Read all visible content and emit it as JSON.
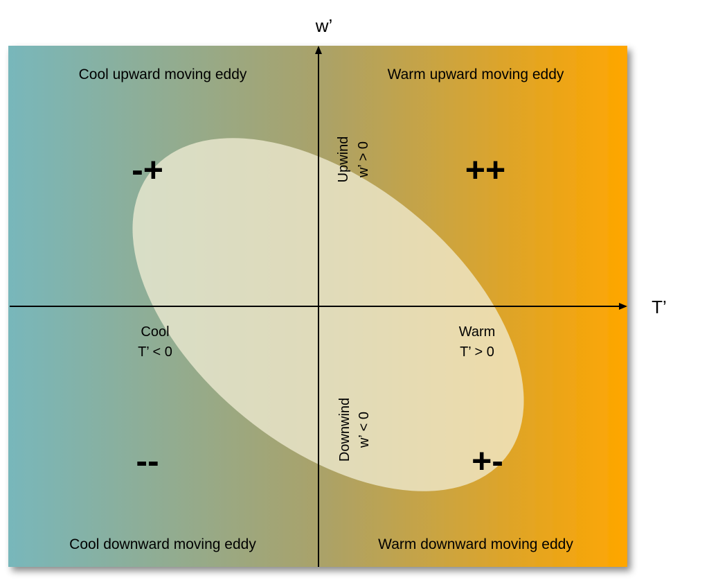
{
  "colors": {
    "cool": "#78b7bb",
    "mid": "#a9a26a",
    "warm": "#ffa600",
    "ellipse": "#f2eed6",
    "axis": "#000000"
  },
  "axes": {
    "x_label": "T’",
    "y_label": "w’"
  },
  "quadrants": {
    "top_left": "Cool upward moving eddy",
    "top_right": "Warm upward moving eddy",
    "bottom_left": "Cool downward moving eddy",
    "bottom_right": "Warm downward moving eddy"
  },
  "signs": {
    "top_left": "-+",
    "top_right": "++",
    "bottom_left": "--",
    "bottom_right": "+-"
  },
  "side_labels": {
    "cool_word": "Cool",
    "cool_condition": "T’ < 0",
    "warm_word": "Warm",
    "warm_condition": "T’ > 0",
    "upwind_word": "Upwind",
    "upwind_condition": "w’ > 0",
    "downwind_word": "Downwind",
    "downwind_condition": "w’ < 0"
  }
}
